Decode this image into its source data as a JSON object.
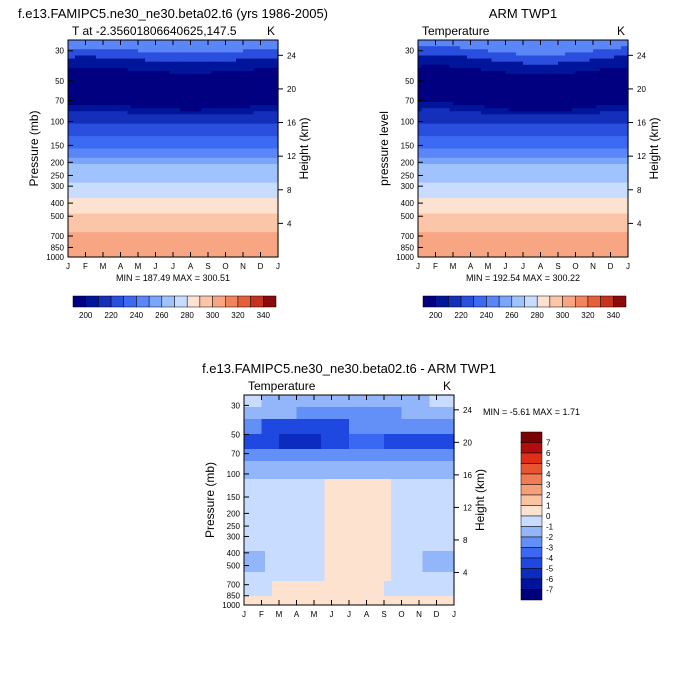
{
  "chart_data": [
    {
      "type": "heatmap",
      "title": "f.e13.FAMIPC5.ne30_ne30.beta02.t6 (yrs 1986-2005)",
      "subtitle": "T at -2.35601806640625,147.5",
      "units": "K",
      "ylabel": "Pressure (mb)",
      "ylabel_right": "Height (km)",
      "months": [
        "J",
        "F",
        "M",
        "A",
        "M",
        "J",
        "J",
        "A",
        "S",
        "O",
        "N",
        "D",
        "J"
      ],
      "pressure_ticks": [
        30,
        50,
        70,
        100,
        150,
        200,
        250,
        300,
        400,
        500,
        700,
        850,
        1000
      ],
      "height_ticks": [
        4,
        8,
        12,
        16,
        20,
        24
      ],
      "stats": "MIN = 187.49 MAX = 300.51",
      "colorbar_labels": [
        "200",
        "220",
        "240",
        "260",
        "280",
        "300",
        "320",
        "340"
      ]
    },
    {
      "type": "heatmap",
      "title": "ARM TWP1",
      "subtitle": "Temperature",
      "units": "K",
      "ylabel": "pressure level",
      "ylabel_right": "Height (km)",
      "months": [
        "J",
        "F",
        "M",
        "A",
        "M",
        "J",
        "J",
        "A",
        "S",
        "O",
        "N",
        "D",
        "J"
      ],
      "pressure_ticks": [
        30,
        50,
        70,
        100,
        150,
        200,
        250,
        300,
        400,
        500,
        700,
        850,
        1000
      ],
      "height_ticks": [
        4,
        8,
        12,
        16,
        20,
        24
      ],
      "stats": "MIN = 192.54 MAX = 300.22",
      "colorbar_labels": [
        "200",
        "220",
        "240",
        "260",
        "280",
        "300",
        "320",
        "340"
      ]
    },
    {
      "type": "heatmap",
      "title": "f.e13.FAMIPC5.ne30_ne30.beta02.t6 - ARM TWP1",
      "subtitle": "Temperature",
      "units": "K",
      "ylabel": "Pressure (mb)",
      "ylabel_right": "Height (km)",
      "months": [
        "J",
        "F",
        "M",
        "A",
        "M",
        "J",
        "J",
        "A",
        "S",
        "O",
        "N",
        "D",
        "J"
      ],
      "pressure_ticks": [
        30,
        50,
        70,
        100,
        150,
        200,
        250,
        300,
        400,
        500,
        700,
        850,
        1000
      ],
      "height_ticks": [
        4,
        8,
        12,
        16,
        20,
        24
      ],
      "stats": "MIN =  -5.61 MAX =    1.71",
      "colorbar_labels": [
        "7",
        "6",
        "5",
        "4",
        "3",
        "2",
        "1",
        "0",
        "-1",
        "-2",
        "-3",
        "-4",
        "-5",
        "-6",
        "-7"
      ]
    }
  ],
  "colors": {
    "abs_palette": [
      "#000080",
      "#00159a",
      "#1430bb",
      "#2a4ede",
      "#3d6af2",
      "#5a86f7",
      "#7aa5fb",
      "#a0c2fd",
      "#c7dcfe",
      "#fde2d2",
      "#fbc5a8",
      "#f7a583",
      "#f1845e",
      "#e5603a",
      "#c73220",
      "#8b0b0b"
    ],
    "diff_palette": [
      "#00007a",
      "#00139c",
      "#0c2cc0",
      "#1e48e0",
      "#3a68f3",
      "#6290f7",
      "#93b6fb",
      "#c7dcfe",
      "#fde2cf",
      "#fac4a3",
      "#f6a07a",
      "#f07c55",
      "#e95532",
      "#dc2f16",
      "#b40c0a",
      "#7a0202"
    ]
  }
}
